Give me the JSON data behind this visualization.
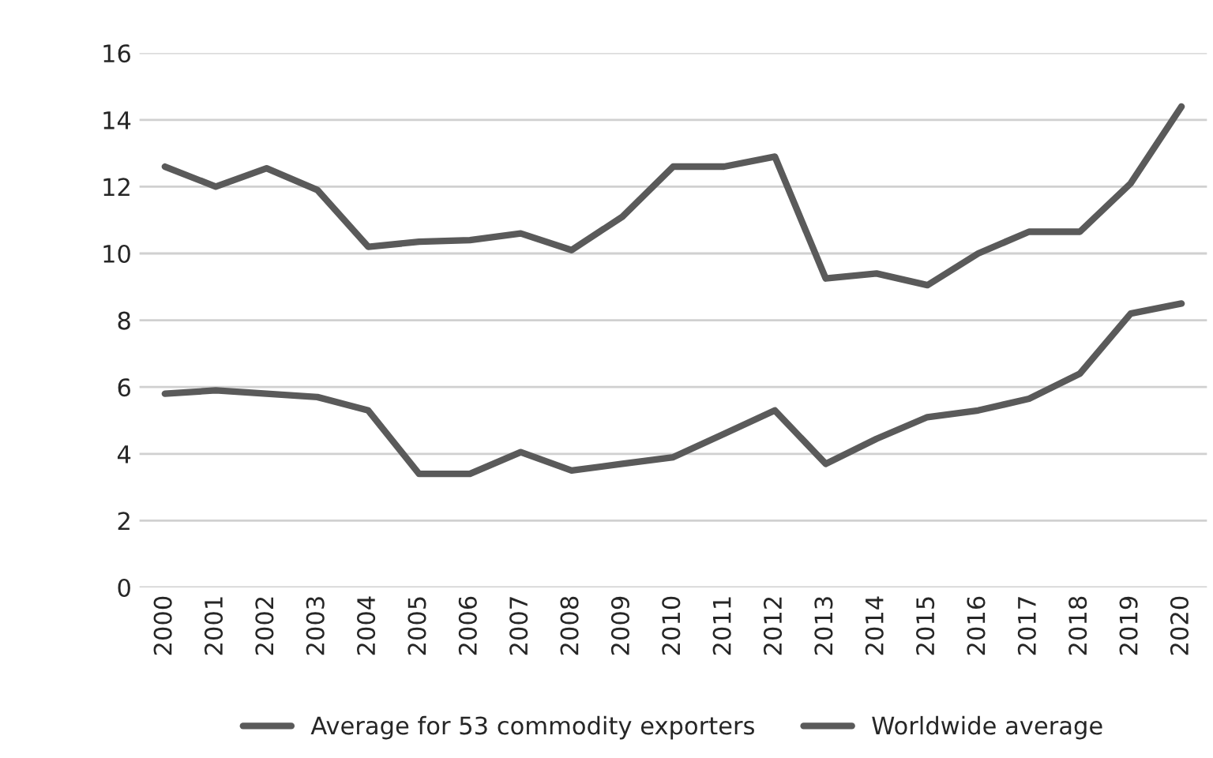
{
  "chart_data": {
    "type": "line",
    "categories": [
      "2000",
      "2001",
      "2002",
      "2003",
      "2004",
      "2005",
      "2006",
      "2007",
      "2008",
      "2009",
      "2010",
      "2011",
      "2012",
      "2013",
      "2014",
      "2015",
      "2016",
      "2017",
      "2018",
      "2019",
      "2020"
    ],
    "series": [
      {
        "name": "Average for 53 commodity exporters",
        "color": "#5a5a5a",
        "values": [
          12.6,
          12.0,
          12.55,
          11.9,
          10.2,
          10.35,
          10.4,
          10.6,
          10.1,
          11.1,
          12.6,
          12.6,
          12.9,
          9.25,
          9.4,
          9.05,
          10.0,
          10.65,
          10.65,
          12.1,
          14.4
        ]
      },
      {
        "name": "Worldwide average",
        "color": "#5a5a5a",
        "values": [
          5.8,
          5.9,
          5.8,
          5.7,
          5.3,
          3.4,
          3.4,
          4.05,
          3.5,
          3.7,
          3.9,
          4.6,
          5.3,
          3.7,
          4.45,
          5.1,
          5.3,
          5.65,
          6.4,
          8.2,
          8.5
        ]
      }
    ],
    "ylim": [
      0,
      16
    ],
    "yticks": [
      0,
      2,
      4,
      6,
      8,
      10,
      12,
      14,
      16
    ],
    "grid": "y",
    "legend": "bottom",
    "marker": "none",
    "line_style": "solid"
  }
}
